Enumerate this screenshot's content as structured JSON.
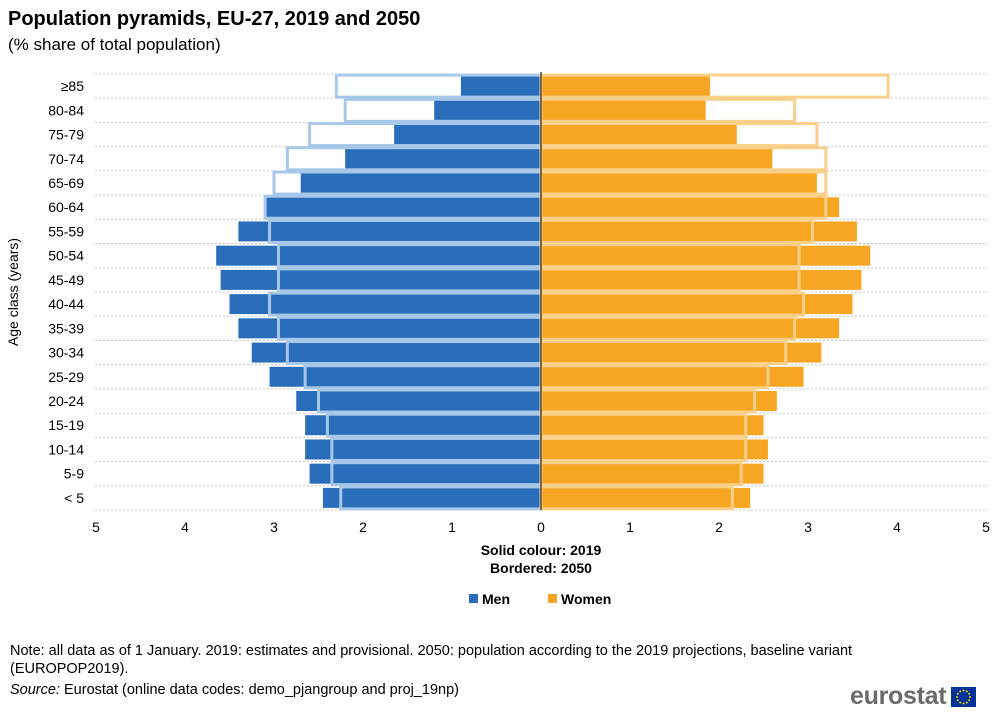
{
  "title": "Population pyramids, EU-27, 2019 and 2050",
  "subtitle": "(% share of total population)",
  "note": "Note: all data as of 1 January.  2019: estimates and provisional. 2050: population according to the 2019 projections, baseline variant  (EUROPOP2019).",
  "source_label": "Source:",
  "source_text": "Eurostat (online data codes: demo_pjangroup and proj_19np)",
  "logo": {
    "text": "eurostat",
    "icon": "eu-flag-icon"
  },
  "colors": {
    "men_2019": "#2a6ebb",
    "men_2050_border": "#a7c8e8",
    "women_2019": "#f6a623",
    "women_2050_border": "#f8d08a",
    "axis": "#000000"
  },
  "chart_data": {
    "type": "bar",
    "orientation": "horizontal",
    "subtype": "population-pyramid",
    "ylabel": "Age class (years)",
    "xlim": [
      -5,
      5
    ],
    "x_ticks": [
      "5",
      "4",
      "3",
      "2",
      "1",
      "0",
      "1",
      "2",
      "3",
      "4",
      "5"
    ],
    "caption_lines": [
      "Solid colour: 2019",
      "Bordered: 2050"
    ],
    "legend_position": "bottom",
    "categories": [
      "≥85",
      "80-84",
      "75-79",
      "70-74",
      "65-69",
      "60-64",
      "55-59",
      "50-54",
      "45-49",
      "40-44",
      "35-39",
      "30-34",
      "25-29",
      "20-24",
      "15-19",
      "10-14",
      "5-9",
      "< 5"
    ],
    "series": [
      {
        "name": "Men",
        "year": "2019",
        "style": "solid",
        "values": [
          0.9,
          1.2,
          1.65,
          2.2,
          2.7,
          3.1,
          3.4,
          3.65,
          3.6,
          3.5,
          3.4,
          3.25,
          3.05,
          2.75,
          2.65,
          2.65,
          2.6,
          2.45
        ]
      },
      {
        "name": "Women",
        "year": "2019",
        "style": "solid",
        "values": [
          1.9,
          1.85,
          2.2,
          2.6,
          3.1,
          3.35,
          3.55,
          3.7,
          3.6,
          3.5,
          3.35,
          3.15,
          2.95,
          2.65,
          2.5,
          2.55,
          2.5,
          2.35
        ]
      },
      {
        "name": "Men",
        "year": "2050",
        "style": "bordered",
        "values": [
          2.3,
          2.2,
          2.6,
          2.85,
          3.0,
          3.1,
          3.05,
          2.95,
          2.95,
          3.05,
          2.95,
          2.85,
          2.65,
          2.5,
          2.4,
          2.35,
          2.35,
          2.25
        ]
      },
      {
        "name": "Women",
        "year": "2050",
        "style": "bordered",
        "values": [
          3.9,
          2.85,
          3.1,
          3.2,
          3.2,
          3.2,
          3.05,
          2.9,
          2.9,
          2.95,
          2.85,
          2.75,
          2.55,
          2.4,
          2.3,
          2.3,
          2.25,
          2.15
        ]
      }
    ]
  }
}
